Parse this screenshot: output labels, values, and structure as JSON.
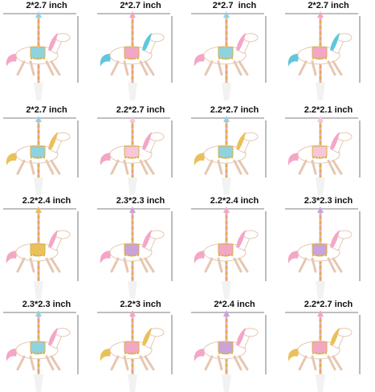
{
  "labels": [
    [
      "2*2.7 inch",
      "2*2.7 inch",
      "2*2.7  inch",
      "2*2.7 inch"
    ],
    [
      "2*2.7 inch",
      "2.2*2.7 inch",
      "2.2*2.7 inch",
      "2.2*2.1 inch"
    ],
    [
      "2.2*2.4 inch",
      "2.3*2.3 inch",
      "2.2*2.4 inch",
      "2.3*2.3 inch"
    ],
    [
      "2.3*2.3 inch",
      "2.2*3 inch",
      "2*2.4 inch",
      "2.2*2.7 inch"
    ]
  ]
}
